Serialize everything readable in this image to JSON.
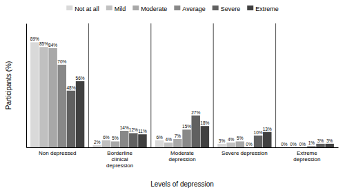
{
  "chart_data": {
    "type": "bar",
    "xlabel": "Levels of depression",
    "ylabel": "Participants (%)",
    "categories": [
      "Non depressed",
      "Borderline\nclinical\ndepression",
      "Moderate\ndepression",
      "Severe depression",
      "Extreme\ndepression"
    ],
    "series": [
      {
        "name": "Not at all",
        "color": "#d9d9d9",
        "values": [
          89,
          2,
          6,
          3,
          0
        ],
        "value_labels": [
          "89%",
          "2%",
          "6%",
          "3%",
          "0%"
        ]
      },
      {
        "name": "Mild",
        "color": "#c0c0c0",
        "values": [
          85,
          6,
          4,
          4,
          0
        ],
        "value_labels": [
          "85%",
          "6%",
          "4%",
          "4%",
          "0%"
        ]
      },
      {
        "name": "Moderate",
        "color": "#a8a8a8",
        "values": [
          84,
          5,
          7,
          5,
          0
        ],
        "value_labels": [
          "84%",
          "5%",
          "7%",
          "5%",
          "0%"
        ]
      },
      {
        "name": "Average",
        "color": "#888888",
        "values": [
          70,
          14,
          15,
          0,
          1
        ],
        "value_labels": [
          "70%",
          "14%",
          "15%",
          "0%",
          "1%"
        ]
      },
      {
        "name": "Severe",
        "color": "#606060",
        "values": [
          48,
          12,
          27,
          10,
          3
        ],
        "value_labels": [
          "48%",
          "12%",
          "27%",
          "10%",
          "3%"
        ]
      },
      {
        "name": "Extreme",
        "color": "#404040",
        "values": [
          56,
          11,
          18,
          13,
          3
        ],
        "value_labels": [
          "56%",
          "11%",
          "18%",
          "13%",
          "3%"
        ]
      }
    ],
    "ylim": [
      0,
      105
    ],
    "grid": false,
    "legend": "top",
    "data_labels": true,
    "tick_labels": "x"
  }
}
